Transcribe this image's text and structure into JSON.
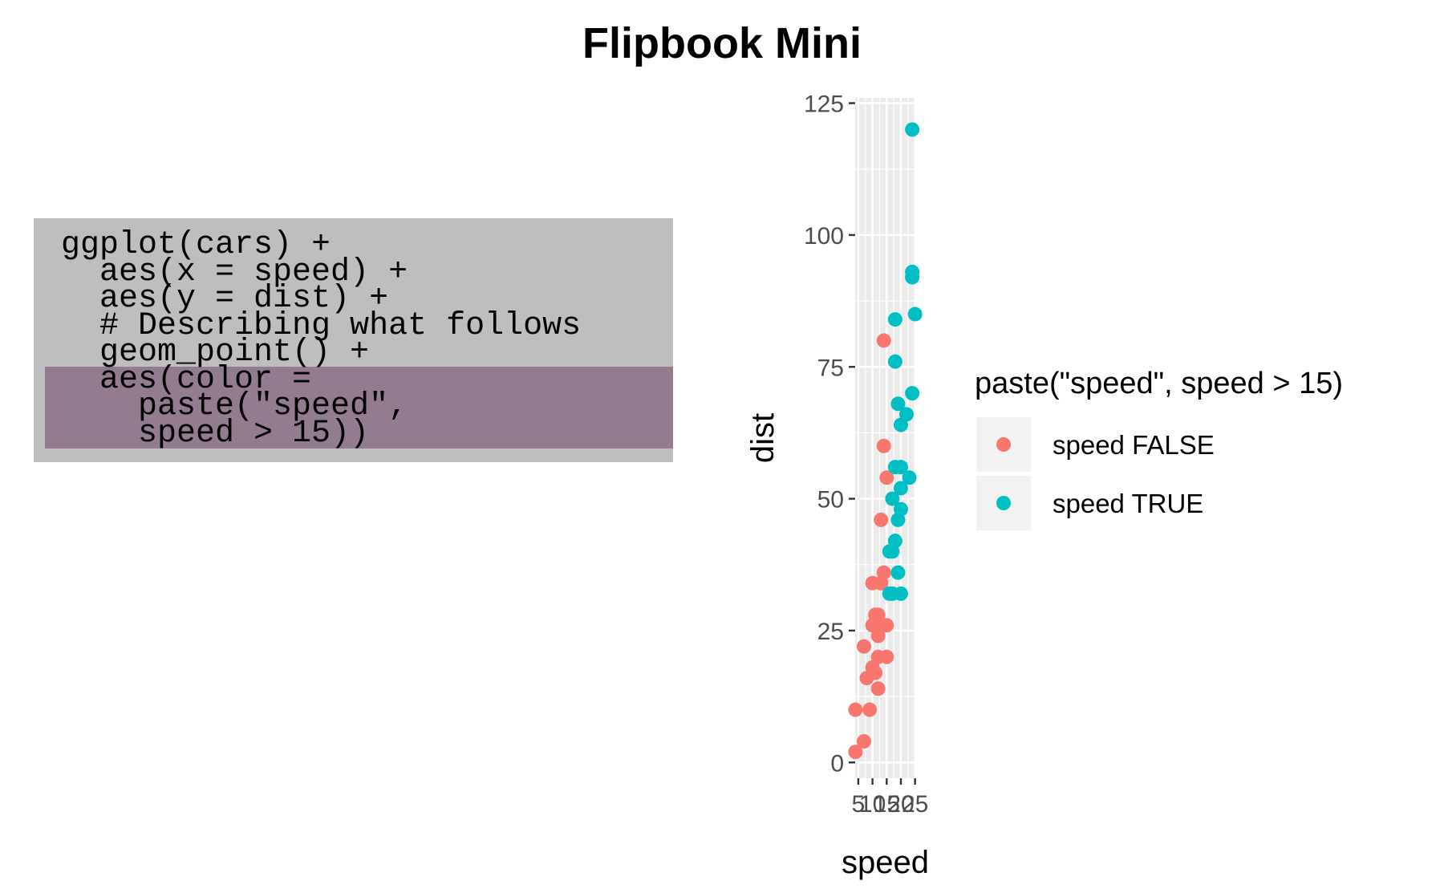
{
  "title": "Flipbook Mini",
  "code": {
    "lines": [
      "ggplot(cars) +",
      "  aes(x = speed) +",
      "  aes(y = dist) +",
      "  # Describing what follows",
      "  geom_point() +",
      "  aes(color =",
      "    paste(\"speed\",",
      "    speed > 15))"
    ],
    "highlight_lines": [
      5,
      6,
      7
    ],
    "panel_color": "#bebebe",
    "highlight_color": "#937b90"
  },
  "chart_data": {
    "type": "scatter",
    "title": "Flipbook Mini",
    "xlabel": "speed",
    "ylabel": "dist",
    "xlim": [
      3.9,
      25.1
    ],
    "ylim": [
      -3,
      126
    ],
    "x_ticks": [
      5,
      10,
      15,
      20,
      25
    ],
    "x_tick_labels": [
      "5",
      "10",
      "15",
      "20",
      "25"
    ],
    "y_ticks": [
      0,
      25,
      50,
      75,
      100,
      125
    ],
    "y_tick_labels": [
      "0",
      "25",
      "50",
      "75",
      "100",
      "125"
    ],
    "panel_background": "#ebebeb",
    "grid": true,
    "legend": {
      "title": "paste(\"speed\", speed > 15)",
      "position": "right",
      "entries": [
        {
          "label": "speed FALSE",
          "color": "#f8766d"
        },
        {
          "label": "speed TRUE",
          "color": "#00bfc4"
        }
      ]
    },
    "series": [
      {
        "name": "speed FALSE",
        "color": "#f8766d",
        "points": [
          [
            4,
            2
          ],
          [
            4,
            10
          ],
          [
            7,
            4
          ],
          [
            7,
            22
          ],
          [
            8,
            16
          ],
          [
            9,
            10
          ],
          [
            10,
            18
          ],
          [
            10,
            26
          ],
          [
            10,
            34
          ],
          [
            11,
            17
          ],
          [
            11,
            28
          ],
          [
            12,
            14
          ],
          [
            12,
            20
          ],
          [
            12,
            24
          ],
          [
            12,
            28
          ],
          [
            13,
            26
          ],
          [
            13,
            34
          ],
          [
            13,
            34
          ],
          [
            13,
            46
          ],
          [
            14,
            26
          ],
          [
            14,
            36
          ],
          [
            14,
            60
          ],
          [
            14,
            80
          ],
          [
            15,
            20
          ],
          [
            15,
            26
          ],
          [
            15,
            54
          ]
        ]
      },
      {
        "name": "speed TRUE",
        "color": "#00bfc4",
        "points": [
          [
            16,
            32
          ],
          [
            16,
            40
          ],
          [
            17,
            32
          ],
          [
            17,
            40
          ],
          [
            17,
            50
          ],
          [
            18,
            42
          ],
          [
            18,
            56
          ],
          [
            18,
            76
          ],
          [
            18,
            84
          ],
          [
            19,
            36
          ],
          [
            19,
            46
          ],
          [
            19,
            68
          ],
          [
            20,
            32
          ],
          [
            20,
            48
          ],
          [
            20,
            52
          ],
          [
            20,
            56
          ],
          [
            20,
            64
          ],
          [
            22,
            66
          ],
          [
            23,
            54
          ],
          [
            24,
            70
          ],
          [
            24,
            92
          ],
          [
            24,
            93
          ],
          [
            24,
            120
          ],
          [
            25,
            85
          ]
        ]
      }
    ]
  }
}
